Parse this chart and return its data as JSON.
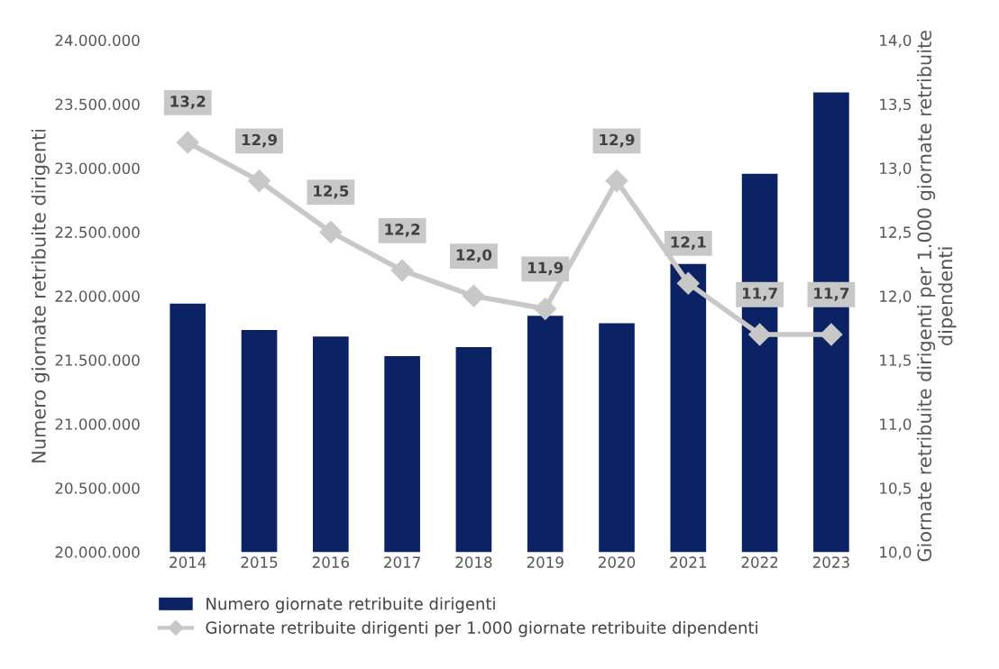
{
  "chart_data": {
    "type": "bar",
    "categories": [
      "2014",
      "2015",
      "2016",
      "2017",
      "2018",
      "2019",
      "2020",
      "2021",
      "2022",
      "2023"
    ],
    "ylabel": "Numero giornate retribuite dirigenti",
    "y2label": "Giornate retribuite dirigenti per 1.000 giornate retribuite dipendenti",
    "series": [
      {
        "name": "Numero giornate retribuite dirigenti",
        "color": "#0b2265",
        "values": [
          21940000,
          21735000,
          21683000,
          21530000,
          21600000,
          21845000,
          21787000,
          22250000,
          22956000,
          23592000
        ]
      },
      {
        "name": "Giornate retribuite dirigenti per 1.000 giornate retribuite dipendenti",
        "type": "line",
        "axis": "y2",
        "color": "#c8c8c8",
        "marker": "diamond",
        "values": [
          13.2,
          12.9,
          12.5,
          12.2,
          12.0,
          11.9,
          12.9,
          12.1,
          11.7,
          11.7
        ],
        "value_labels": [
          "13,2",
          "12,9",
          "12,5",
          "12,2",
          "12,0",
          "11,9",
          "12,9",
          "12,1",
          "11,7",
          "11,7"
        ]
      }
    ],
    "ylim": [
      20000000,
      24000000
    ],
    "yticks": [
      {
        "value": 20000000,
        "label": "20.000.000"
      },
      {
        "value": 20500000,
        "label": "20.500.000"
      },
      {
        "value": 21000000,
        "label": "21.000.000"
      },
      {
        "value": 21500000,
        "label": "21.500.000"
      },
      {
        "value": 22000000,
        "label": "22.000.000"
      },
      {
        "value": 22500000,
        "label": "22.500.000"
      },
      {
        "value": 23000000,
        "label": "23.000.000"
      },
      {
        "value": 23500000,
        "label": "23.500.000"
      },
      {
        "value": 24000000,
        "label": "24.000.000"
      }
    ],
    "y2lim": [
      10,
      14
    ],
    "y2ticks": [
      {
        "value": 10,
        "label": "10,0"
      },
      {
        "value": 10.5,
        "label": "10,5"
      },
      {
        "value": 11,
        "label": "11,0"
      },
      {
        "value": 11.5,
        "label": "11,5"
      },
      {
        "value": 12,
        "label": "12,0"
      },
      {
        "value": 12.5,
        "label": "12,5"
      },
      {
        "value": 13,
        "label": "13,0"
      },
      {
        "value": 13.5,
        "label": "13,5"
      },
      {
        "value": 14,
        "label": "14,0"
      }
    ],
    "grid": false,
    "legend": "bottom"
  }
}
